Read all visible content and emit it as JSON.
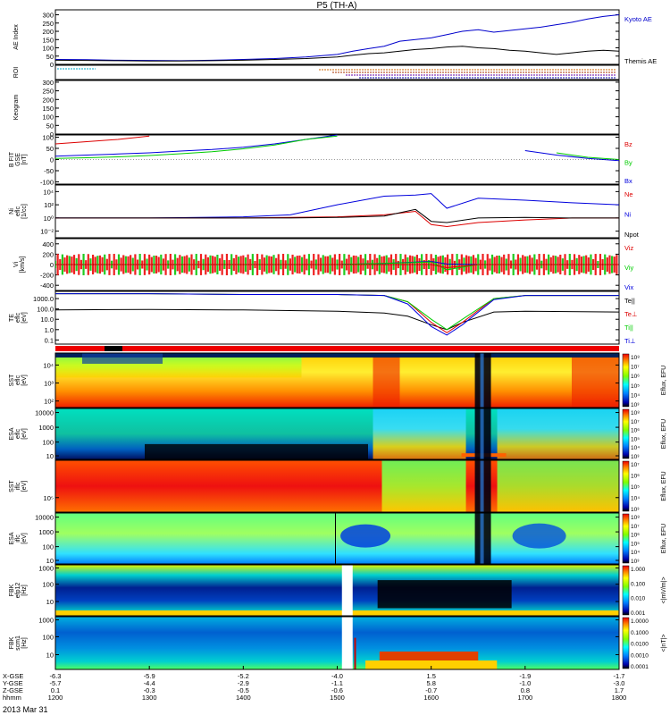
{
  "title": "P5 (TH-A)",
  "date_label": "2013 Mar 31",
  "colors": {
    "kyoto": "#0000cc",
    "themis": "#000000",
    "bx": "#0000dd",
    "by": "#00cc00",
    "bz": "#dd0000",
    "ni": "#0000dd",
    "ne": "#dd0000",
    "npot": "#000000",
    "vx": "#0000dd",
    "vy": "#00cc00",
    "vz": "#dd0000",
    "teperp": "#dd0000",
    "tipar": "#00cc00",
    "tiperp": "#0000dd",
    "tepar": "#000000"
  },
  "panels": [
    {
      "id": "ae",
      "ylabel": [
        "AE Index"
      ],
      "ylim": [
        0,
        330
      ],
      "ticks": [
        "300",
        "250",
        "200",
        "150",
        "100",
        "50",
        "0"
      ],
      "tick_values": [
        300,
        250,
        200,
        150,
        100,
        50,
        0
      ],
      "legend": [
        {
          "text": "Kyoto AE",
          "color": "kyoto"
        },
        {
          "text": "Themis AE",
          "color": "themis"
        }
      ]
    },
    {
      "id": "roi",
      "ylabel": [
        "ROI"
      ],
      "ticks": [],
      "legend": []
    },
    {
      "id": "keogram",
      "ylabel": [
        "Keogram"
      ],
      "ylim": [
        0,
        310
      ],
      "ticks": [
        "300",
        "250",
        "200",
        "150",
        "100",
        "50",
        "0"
      ],
      "tick_values": [
        300,
        250,
        200,
        150,
        100,
        50,
        0
      ],
      "legend": []
    },
    {
      "id": "bfield",
      "ylabel": [
        "B FIT",
        "GSE",
        "[nT]"
      ],
      "ylim": [
        -110,
        110
      ],
      "ticks": [
        "100",
        "50",
        "0",
        "-50",
        "-100"
      ],
      "tick_values": [
        100,
        50,
        0,
        -50,
        -100
      ],
      "legend": [
        {
          "text": "Bz",
          "color": "bz"
        },
        {
          "text": "By",
          "color": "by"
        },
        {
          "text": "Bx",
          "color": "bx"
        }
      ]
    },
    {
      "id": "density",
      "ylabel": [
        "Ni",
        "eflc",
        "[1/cc]"
      ],
      "log": true,
      "ticks": [
        "10⁴",
        "10²",
        "10⁰",
        "10⁻²"
      ],
      "tick_exp": [
        4,
        2,
        0,
        -2
      ],
      "yexp": [
        -3,
        5
      ],
      "legend": [
        {
          "text": "Ne",
          "color": "ne"
        },
        {
          "text": "Ni",
          "color": "ni"
        },
        {
          "text": "Npot",
          "color": "npot"
        }
      ]
    },
    {
      "id": "velocity",
      "ylabel": [
        "Vi",
        "[km/s]"
      ],
      "ylim": [
        -500,
        500
      ],
      "ticks": [
        "400",
        "200",
        "0",
        "-200",
        "-400"
      ],
      "tick_values": [
        400,
        200,
        0,
        -200,
        -400
      ],
      "legend": [
        {
          "text": "Viz",
          "color": "vz"
        },
        {
          "text": "Viy",
          "color": "vy"
        },
        {
          "text": "Vix",
          "color": "vx"
        }
      ]
    },
    {
      "id": "temperature",
      "ylabel": [
        "TE",
        "eflc",
        "[eV]"
      ],
      "log": true,
      "ticks": [
        "1000.0",
        "100.0",
        "10.0",
        "1.0",
        "0.1"
      ],
      "tick_exp": [
        3,
        2,
        1,
        0,
        -1
      ],
      "yexp": [
        -1.4,
        3.7
      ],
      "legend": [
        {
          "text": "Te||",
          "color": "tepar"
        },
        {
          "text": "Te⊥",
          "color": "teperp"
        },
        {
          "text": "Ti||",
          "color": "tipar"
        },
        {
          "text": "Ti⊥",
          "color": "tiperp"
        }
      ]
    },
    {
      "id": "sst_e",
      "ylabel": [
        "SST",
        "eflc",
        "[eV]"
      ],
      "spectrogram": true,
      "ticks": [
        "10⁴",
        "10³",
        "10²"
      ],
      "tick_frac": [
        0.22,
        0.55,
        0.88
      ],
      "colorbar": {
        "ticks": [
          "10⁸",
          "10⁷",
          "10⁶",
          "10⁵",
          "10⁴",
          "10³"
        ],
        "label": "Eflux, EFU"
      }
    },
    {
      "id": "esa_e",
      "ylabel": [
        "ESA",
        "eflc",
        "[eV]"
      ],
      "spectrogram": true,
      "ticks": [
        "10000",
        "1000",
        "100",
        "10"
      ],
      "tick_frac": [
        0.08,
        0.37,
        0.66,
        0.93
      ],
      "colorbar": {
        "ticks": [
          "10⁸",
          "10⁷",
          "10⁶",
          "10⁵",
          "10⁴",
          "10³"
        ],
        "label": "Eflux, EFU"
      }
    },
    {
      "id": "sst_i",
      "ylabel": [
        "SST",
        "iflc",
        "[eV]"
      ],
      "spectrogram": true,
      "ticks": [
        "10⁵"
      ],
      "tick_frac": [
        0.72
      ],
      "colorbar": {
        "ticks": [
          "10⁷",
          "10⁶",
          "10⁵",
          "10⁴",
          "10³"
        ],
        "label": "Eflux, EFU"
      }
    },
    {
      "id": "esa_i",
      "ylabel": [
        "ESA",
        "iflc",
        "[eV]"
      ],
      "spectrogram": true,
      "ticks": [
        "10000",
        "1000",
        "100",
        "10"
      ],
      "tick_frac": [
        0.08,
        0.37,
        0.66,
        0.93
      ],
      "colorbar": {
        "ticks": [
          "10⁸",
          "10⁷",
          "10⁶",
          "10⁵",
          "10⁴",
          "10³"
        ],
        "label": "Eflux, EFU"
      }
    },
    {
      "id": "fbk_e",
      "ylabel": [
        "FBK",
        "efp12",
        "[Hz]"
      ],
      "spectrogram": true,
      "ticks": [
        "1000",
        "100",
        "10"
      ],
      "tick_frac": [
        0.06,
        0.38,
        0.72
      ],
      "colorbar": {
        "ticks": [
          "1.000",
          "0.100",
          "0.010",
          "0.001"
        ],
        "label": "<|mV/m|>"
      }
    },
    {
      "id": "fbk_b",
      "ylabel": [
        "FBK",
        "scm1",
        "[Hz]"
      ],
      "spectrogram": true,
      "ticks": [
        "1000",
        "100",
        "10"
      ],
      "tick_frac": [
        0.06,
        0.38,
        0.72
      ],
      "colorbar": {
        "ticks": [
          "1.0000",
          "0.1000",
          "0.0100",
          "0.0010",
          "0.0001"
        ],
        "label": "<|nT|>"
      }
    }
  ],
  "xaxis": {
    "row_labels": [
      "X-GSE",
      "Y-GSE",
      "Z-GSE",
      "hhmm"
    ],
    "columns": [
      {
        "x": [
          "-6.3",
          "-5.7",
          "0.1",
          "1200"
        ]
      },
      {
        "x": [
          "-5.9",
          "-4.4",
          "-0.3",
          "1300"
        ]
      },
      {
        "x": [
          "-5.2",
          "-2.9",
          "-0.5",
          "1400"
        ]
      },
      {
        "x": [
          "-4.0",
          "-1.1",
          "-0.6",
          "1500"
        ]
      },
      {
        "x": [
          "1.5",
          "5.8",
          "-0.7",
          "1600"
        ]
      },
      {
        "x": [
          "-1.9",
          "-1.0",
          "0.8",
          "1700"
        ]
      },
      {
        "x": [
          "-1.7",
          "-3.0",
          "1.7",
          "1800"
        ]
      }
    ]
  },
  "chart_data": [
    {
      "type": "line",
      "title": "AE Index",
      "x_hhmm": [
        1200,
        1220,
        1240,
        1300,
        1320,
        1340,
        1400,
        1420,
        1440,
        1500,
        1510,
        1520,
        1530,
        1540,
        1550,
        1600,
        1610,
        1620,
        1630,
        1640,
        1650,
        1700,
        1710,
        1720,
        1730,
        1740,
        1750,
        1800
      ],
      "series": [
        {
          "name": "Kyoto AE",
          "values": [
            30,
            28,
            25,
            24,
            22,
            25,
            30,
            35,
            45,
            60,
            80,
            95,
            110,
            140,
            150,
            160,
            180,
            200,
            210,
            195,
            205,
            215,
            225,
            240,
            255,
            275,
            290,
            300
          ]
        },
        {
          "name": "Themis AE",
          "values": [
            25,
            24,
            22,
            20,
            20,
            22,
            25,
            30,
            35,
            45,
            55,
            65,
            70,
            80,
            90,
            95,
            105,
            110,
            100,
            95,
            85,
            80,
            70,
            60,
            70,
            80,
            85,
            80
          ]
        }
      ],
      "ylim": [
        0,
        330
      ]
    },
    {
      "type": "line",
      "title": "B FIT GSE",
      "x_hhmm": [
        1200,
        1220,
        1240,
        1300,
        1320,
        1340,
        1400,
        1420,
        1440,
        1500,
        1520,
        1540,
        1600,
        1620,
        1640,
        1700,
        1720,
        1740,
        1800
      ],
      "series": [
        {
          "name": "Bx",
          "values": [
            15,
            20,
            25,
            30,
            38,
            45,
            55,
            70,
            90,
            110,
            null,
            null,
            null,
            null,
            null,
            40,
            20,
            5,
            -5
          ]
        },
        {
          "name": "By",
          "values": [
            5,
            8,
            12,
            18,
            26,
            35,
            48,
            65,
            90,
            105,
            null,
            null,
            null,
            null,
            null,
            null,
            30,
            10,
            0
          ]
        },
        {
          "name": "Bz",
          "values": [
            70,
            80,
            90,
            105,
            null,
            null,
            null,
            null,
            null,
            null,
            null,
            null,
            null,
            null,
            null,
            null,
            null,
            null,
            null
          ]
        }
      ],
      "ylim": [
        -110,
        110
      ]
    },
    {
      "type": "line",
      "title": "Density",
      "log": true,
      "x_hhmm": [
        1200,
        1300,
        1400,
        1430,
        1500,
        1530,
        1550,
        1600,
        1610,
        1630,
        1700,
        1730,
        1800
      ],
      "series": [
        {
          "name": "Ni",
          "values": [
            1,
            1,
            1.5,
            3,
            100,
            2000,
            3000,
            5000,
            30,
            1000,
            500,
            200,
            100
          ]
        },
        {
          "name": "Ne",
          "values": [
            1,
            1,
            1,
            1.2,
            1.5,
            3,
            10,
            0.1,
            0.05,
            0.2,
            0.5,
            1,
            1
          ]
        },
        {
          "name": "Npot",
          "values": [
            1,
            1,
            1,
            1,
            1.2,
            2,
            20,
            0.3,
            0.2,
            1,
            1.2,
            1,
            1
          ]
        }
      ]
    },
    {
      "type": "line",
      "title": "Velocity",
      "x_hhmm": [
        1200,
        1300,
        1400,
        1500,
        1530,
        1600,
        1610,
        1630,
        1700,
        1800
      ],
      "series": [
        {
          "name": "Vix",
          "values": [
            0,
            0,
            0,
            0,
            20,
            60,
            10,
            0,
            0,
            0
          ]
        },
        {
          "name": "Viy",
          "values": [
            0,
            0,
            0,
            0,
            20,
            50,
            -100,
            0,
            0,
            0
          ]
        },
        {
          "name": "Viz",
          "values": [
            0,
            0,
            0,
            0,
            0,
            0,
            -60,
            0,
            0,
            0
          ]
        }
      ],
      "ylim": [
        -500,
        500
      ]
    },
    {
      "type": "line",
      "title": "Temperature",
      "log": true,
      "x_hhmm": [
        1200,
        1300,
        1400,
        1500,
        1530,
        1545,
        1600,
        1610,
        1620,
        1640,
        1700,
        1800
      ],
      "series": [
        {
          "name": "Te||",
          "values": [
            80,
            90,
            80,
            60,
            40,
            20,
            3,
            1,
            5,
            50,
            60,
            50
          ]
        },
        {
          "name": "Te⊥",
          "values": [
            3000,
            3000,
            2500,
            2500,
            2000,
            500,
            5,
            0.5,
            5,
            1000,
            2000,
            2000
          ]
        },
        {
          "name": "Ti||",
          "values": [
            3000,
            3000,
            2500,
            2500,
            2000,
            500,
            10,
            1,
            10,
            1000,
            2000,
            2000
          ]
        },
        {
          "name": "Ti⊥",
          "values": [
            3000,
            3000,
            2500,
            2500,
            2000,
            300,
            2,
            0.3,
            3,
            800,
            2000,
            2000
          ]
        }
      ]
    }
  ]
}
